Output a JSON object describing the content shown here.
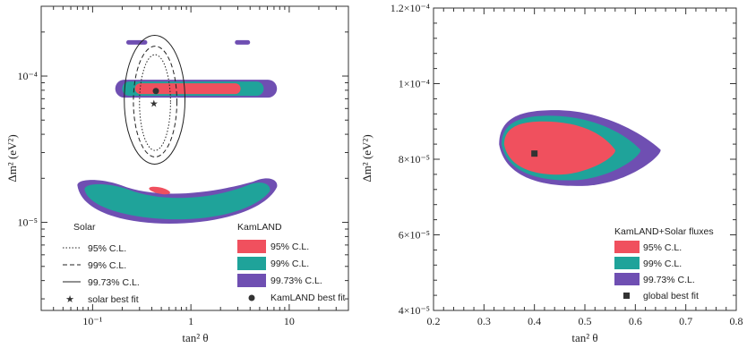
{
  "colors": {
    "cl95": "#f0505e",
    "cl99": "#1fa39a",
    "cl9973": "#6f4fb2",
    "solar_lines": "#222222",
    "marker": "#333333"
  },
  "chart_data": [
    {
      "type": "contour",
      "title": "",
      "xlabel": "tan² θ",
      "ylabel": "Δm² (eV²)",
      "xscale": "log",
      "yscale": "log",
      "xlim": [
        0.03,
        40
      ],
      "ylim": [
        2.5e-06,
        0.0003
      ],
      "x_ticks": [
        {
          "v": 0.1,
          "label": "10⁻¹"
        },
        {
          "v": 1,
          "label": "1"
        },
        {
          "v": 10,
          "label": "10"
        }
      ],
      "y_ticks": [
        {
          "v": 0.0001,
          "label": "10⁻⁴"
        },
        {
          "v": 1e-05,
          "label": "10⁻⁵"
        }
      ],
      "legend_solar": {
        "title": "Solar",
        "entries": [
          {
            "style": "dotted",
            "label": "95% C.L."
          },
          {
            "style": "dashed",
            "label": "99% C.L."
          },
          {
            "style": "solid",
            "label": "99.73% C.L."
          },
          {
            "style": "star",
            "label": "solar best fit"
          }
        ]
      },
      "legend_kamland": {
        "title": "KamLAND",
        "entries": [
          {
            "color_key": "cl95",
            "label": "95% C.L."
          },
          {
            "color_key": "cl99",
            "label": "99% C.L."
          },
          {
            "color_key": "cl9973",
            "label": "99.73% C.L."
          },
          {
            "style": "circle",
            "label": "KamLAND best fit"
          }
        ]
      },
      "kamland_best_fit": {
        "x": 0.44,
        "y": 7.9e-05
      },
      "solar_best_fit": {
        "x": 0.42,
        "y": 6.5e-05
      },
      "kamland_regions": {
        "upper_band": {
          "y_center": 8.2e-05,
          "x_range_9973": [
            0.17,
            7.5
          ],
          "x_range_99": [
            0.2,
            5.5
          ],
          "x_range_95": [
            0.27,
            3.2
          ]
        },
        "lower_band": {
          "y_range": [
            9.8e-06,
            1.95e-05
          ],
          "x_range": [
            0.07,
            7.5
          ]
        },
        "small_islands": [
          {
            "x_range": [
              0.22,
              0.36
            ],
            "y": 0.00017
          },
          {
            "x_range": [
              2.8,
              4.0
            ],
            "y": 0.00017
          }
        ]
      },
      "solar_contours": {
        "cl9973": {
          "x_range": [
            0.21,
            0.87
          ],
          "y_range": [
            2.5e-05,
            0.00019
          ]
        },
        "cl99": {
          "x_range": [
            0.26,
            0.72
          ],
          "y_range": [
            2.8e-05,
            0.00016
          ]
        },
        "cl95": {
          "x_range": [
            0.3,
            0.62
          ],
          "y_range": [
            3.1e-05,
            0.00014
          ]
        }
      }
    },
    {
      "type": "contour",
      "title": "",
      "xlabel": "tan² θ",
      "ylabel": "Δm² (eV²)",
      "xscale": "linear",
      "yscale": "linear",
      "xlim": [
        0.2,
        0.8
      ],
      "ylim": [
        4e-05,
        0.00012
      ],
      "x_ticks": [
        {
          "v": 0.2,
          "label": "0.2"
        },
        {
          "v": 0.3,
          "label": "0.3"
        },
        {
          "v": 0.4,
          "label": "0.4"
        },
        {
          "v": 0.5,
          "label": "0.5"
        },
        {
          "v": 0.6,
          "label": "0.6"
        },
        {
          "v": 0.7,
          "label": "0.7"
        },
        {
          "v": 0.8,
          "label": "0.8"
        }
      ],
      "y_ticks": [
        {
          "v": 4e-05,
          "label": "4×10⁻⁵"
        },
        {
          "v": 6e-05,
          "label": "6×10⁻⁵"
        },
        {
          "v": 8e-05,
          "label": "8×10⁻⁵"
        },
        {
          "v": 0.0001,
          "label": "1×10⁻⁴"
        },
        {
          "v": 0.00012,
          "label": "1.2×10⁻⁴"
        }
      ],
      "legend": {
        "title": "KamLAND+Solar fluxes",
        "entries": [
          {
            "color_key": "cl95",
            "label": "95% C.L."
          },
          {
            "color_key": "cl99",
            "label": "99% C.L."
          },
          {
            "color_key": "cl9973",
            "label": "99.73% C.L."
          },
          {
            "style": "square",
            "label": "global best fit"
          }
        ]
      },
      "global_best_fit": {
        "x": 0.4,
        "y": 8.15e-05
      },
      "regions": {
        "cl9973": {
          "x_range": [
            0.33,
            0.65
          ],
          "y_range": [
            7.3e-05,
            9.3e-05
          ]
        },
        "cl99": {
          "x_range": [
            0.335,
            0.61
          ],
          "y_range": [
            7.45e-05,
            9.15e-05
          ]
        },
        "cl95": {
          "x_range": [
            0.34,
            0.56
          ],
          "y_range": [
            7.6e-05,
            9e-05
          ]
        }
      }
    }
  ]
}
